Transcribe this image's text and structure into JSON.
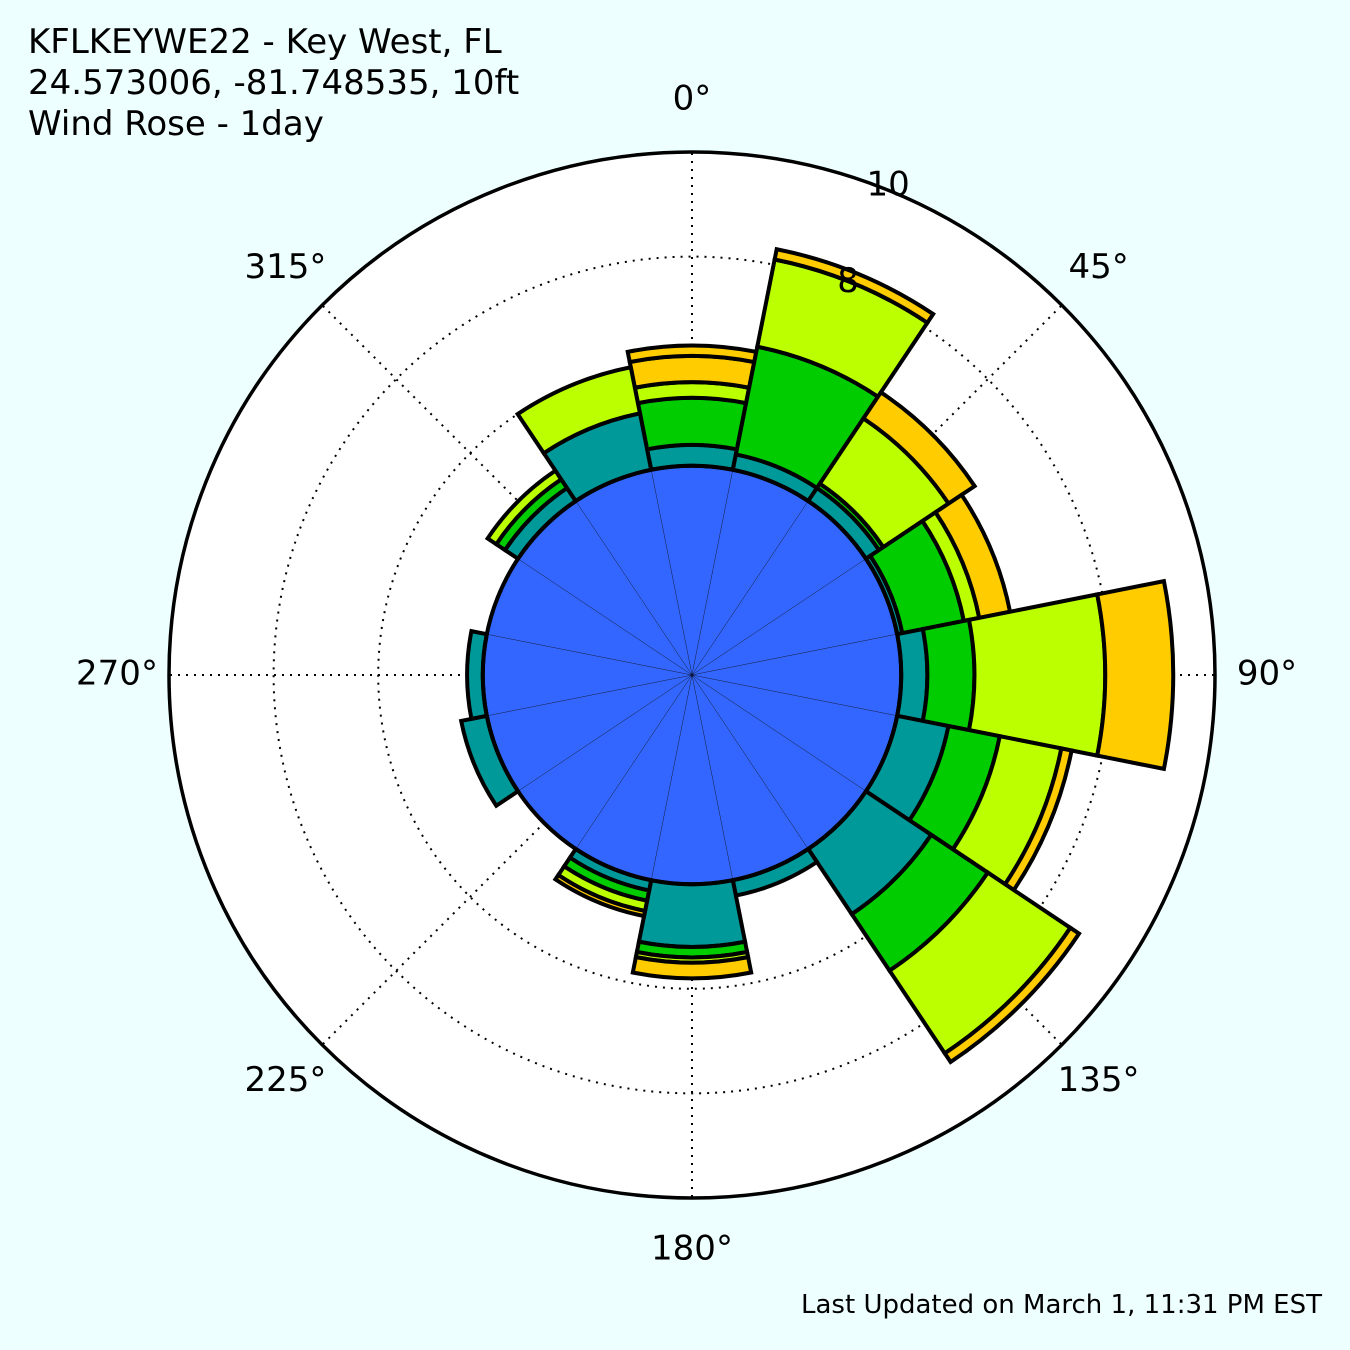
{
  "header": {
    "station": "KFLKEYWE22 - Key West, FL",
    "location": "24.573006, -81.748535, 10ft",
    "chart_title": "Wind Rose - 1day"
  },
  "footer": {
    "last_updated": "Last Updated on March 1, 11:31 PM EST"
  },
  "chart_data": {
    "type": "polar-bar",
    "title": "Wind Rose - 1day",
    "rmax": 10,
    "radial_ticks": [
      2,
      4,
      6,
      8,
      10
    ],
    "radial_tick_labels_shown": [
      "8",
      "10"
    ],
    "angle_ticks": [
      0,
      45,
      90,
      135,
      180,
      225,
      270,
      315
    ],
    "angle_labels": [
      "0°",
      "45°",
      "90°",
      "135°",
      "180°",
      "225°",
      "270°",
      "315°"
    ],
    "sector_width_deg": 22.5,
    "colors": [
      "#3366ff",
      "#009999",
      "#00cc00",
      "#bbff00",
      "#ffcc00"
    ],
    "grid": true,
    "sectors": [
      {
        "dir": 0,
        "stack": [
          4.0,
          4.4,
          5.3,
          5.6,
          6.1,
          6.3
        ]
      },
      {
        "dir": 22.5,
        "stack": [
          4.0,
          4.3,
          6.4,
          8.1,
          8.3
        ]
      },
      {
        "dir": 45,
        "stack": [
          4.0,
          4.3,
          4.4,
          5.9,
          6.5
        ]
      },
      {
        "dir": 67.5,
        "stack": [
          4.0,
          4.1,
          5.3,
          5.6,
          6.2
        ]
      },
      {
        "dir": 90,
        "stack": [
          4.0,
          4.5,
          5.4,
          7.9,
          9.2
        ]
      },
      {
        "dir": 112.5,
        "stack": [
          4.0,
          5.0,
          6.0,
          7.2,
          7.4
        ]
      },
      {
        "dir": 135,
        "stack": [
          4.0,
          5.5,
          6.8,
          8.7,
          8.9
        ]
      },
      {
        "dir": 157.5,
        "stack": [
          4.0,
          4.3,
          4.3,
          4.3
        ]
      },
      {
        "dir": 180,
        "stack": [
          4.0,
          5.2,
          5.4,
          5.5,
          5.8
        ]
      },
      {
        "dir": 202.5,
        "stack": [
          4.0,
          4.2,
          4.4,
          4.6,
          4.7
        ]
      },
      {
        "dir": 225,
        "stack": [
          4.0,
          4.0,
          4.0,
          4.0
        ]
      },
      {
        "dir": 247.5,
        "stack": [
          4.0,
          4.5
        ]
      },
      {
        "dir": 270,
        "stack": [
          4.0,
          4.3
        ]
      },
      {
        "dir": 292.5,
        "stack": [
          4.0,
          4.0,
          4.0,
          4.0
        ]
      },
      {
        "dir": 315,
        "stack": [
          4.0,
          4.3,
          4.5,
          4.7
        ]
      },
      {
        "dir": 337.5,
        "stack": [
          4.0,
          5.1,
          5.1,
          6.0
        ]
      }
    ]
  }
}
